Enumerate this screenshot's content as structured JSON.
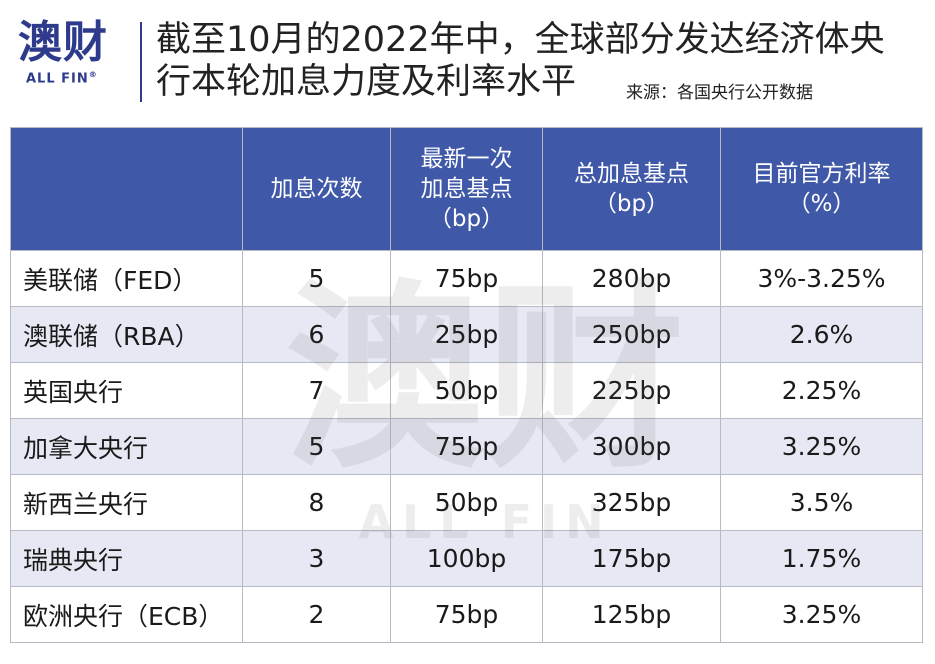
{
  "brand": {
    "logo_cn": "澳财",
    "logo_en": "ALL FIN",
    "reg_mark": "®",
    "color": "#2e3a8c"
  },
  "title": {
    "line1": "截至10月的2022年中，全球部分发达经济体央",
    "line2": "行本轮加息力度及利率水平",
    "source": "来源：各国央行公开数据"
  },
  "table": {
    "header_color": "#3f58a8",
    "stripe_color": "#e6e9f3",
    "headers": [
      "",
      "加息次数",
      "最新一次\n加息基点\n（bp）",
      "总加息基点\n（bp）",
      "目前官方利率\n（%）"
    ],
    "rows": [
      {
        "name": "美联储（FED）",
        "hikes": "5",
        "latest": "75bp",
        "total": "280bp",
        "rate": "3%-3.25%"
      },
      {
        "name": "澳联储（RBA）",
        "hikes": "6",
        "latest": "25bp",
        "total": "250bp",
        "rate": "2.6%"
      },
      {
        "name": "英国央行",
        "hikes": "7",
        "latest": "50bp",
        "total": "225bp",
        "rate": "2.25%"
      },
      {
        "name": "加拿大央行",
        "hikes": "5",
        "latest": "75bp",
        "total": "300bp",
        "rate": "3.25%"
      },
      {
        "name": "新西兰央行",
        "hikes": "8",
        "latest": "50bp",
        "total": "325bp",
        "rate": "3.5%"
      },
      {
        "name": "瑞典央行",
        "hikes": "3",
        "latest": "100bp",
        "total": "175bp",
        "rate": "1.75%"
      },
      {
        "name": "欧洲央行（ECB）",
        "hikes": "2",
        "latest": "75bp",
        "total": "125bp",
        "rate": "3.25%"
      }
    ]
  },
  "watermark": {
    "big": "澳财",
    "small": "ALL FIN"
  }
}
